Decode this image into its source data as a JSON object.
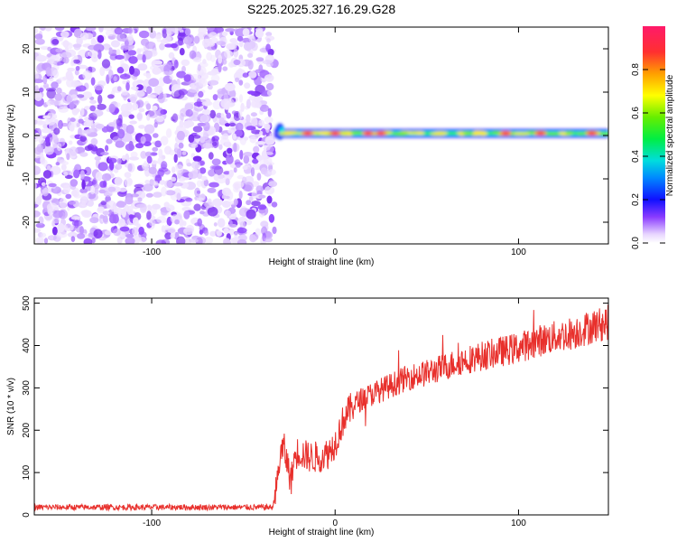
{
  "chart_data": [
    {
      "type": "heatmap",
      "title": "S225.2025.327.16.29.G28",
      "xlabel": "Height of straight line (km)",
      "ylabel": "Frequency (Hz)",
      "xlim": [
        -164,
        149
      ],
      "ylim": [
        -25,
        25
      ],
      "x_ticks": [
        {
          "value": -100,
          "label": "-100"
        },
        {
          "value": 0,
          "label": "0"
        },
        {
          "value": 100,
          "label": "100"
        }
      ],
      "y_ticks": [
        {
          "value": -20,
          "label": "-20"
        },
        {
          "value": -10,
          "label": "-10"
        },
        {
          "value": 0,
          "label": "0"
        },
        {
          "value": 10,
          "label": "10"
        },
        {
          "value": 20,
          "label": "20"
        }
      ],
      "noise_region": [
        -164,
        -33
      ],
      "signal_start": -33,
      "signal_track_frequency": 0.5,
      "signal_peak_heights": [
        -15,
        0,
        18,
        25,
        93,
        112,
        140
      ],
      "colorbar": {
        "label": "Normalized spectral amplitude",
        "range": [
          0,
          1
        ],
        "ticks": [
          {
            "value": 0.0,
            "label": "0.0"
          },
          {
            "value": 0.2,
            "label": "0.2"
          },
          {
            "value": 0.4,
            "label": "0.4"
          },
          {
            "value": 0.6,
            "label": "0.6"
          },
          {
            "value": 0.8,
            "label": "0.8"
          }
        ]
      }
    },
    {
      "type": "line",
      "xlabel": "Height of straight line (km)",
      "ylabel": "SNR (10 * v/v)",
      "xlim": [
        -164,
        149
      ],
      "ylim": [
        0,
        512
      ],
      "x_ticks": [
        {
          "value": -100,
          "label": "-100"
        },
        {
          "value": 0,
          "label": "0"
        },
        {
          "value": 100,
          "label": "100"
        }
      ],
      "y_ticks": [
        {
          "value": 0,
          "label": "0"
        },
        {
          "value": 100,
          "label": "100"
        },
        {
          "value": 200,
          "label": "200"
        },
        {
          "value": 300,
          "label": "300"
        },
        {
          "value": 400,
          "label": "400"
        },
        {
          "value": 500,
          "label": "500"
        }
      ],
      "series": [
        {
          "name": "SNR",
          "color": "#e8302c",
          "x": [
            -164,
            -140,
            -100,
            -60,
            -34,
            -32,
            -30,
            -28,
            -26,
            -24,
            -22,
            -20,
            -16,
            -12,
            -8,
            -4,
            0,
            5,
            10,
            15,
            20,
            30,
            40,
            50,
            60,
            70,
            80,
            90,
            100,
            110,
            120,
            130,
            140,
            149
          ],
          "values": [
            18,
            18,
            18,
            18,
            18,
            60,
            140,
            160,
            120,
            80,
            140,
            150,
            140,
            135,
            140,
            145,
            170,
            230,
            260,
            275,
            285,
            305,
            325,
            335,
            350,
            365,
            375,
            385,
            395,
            410,
            420,
            430,
            445,
            455
          ]
        }
      ]
    }
  ]
}
